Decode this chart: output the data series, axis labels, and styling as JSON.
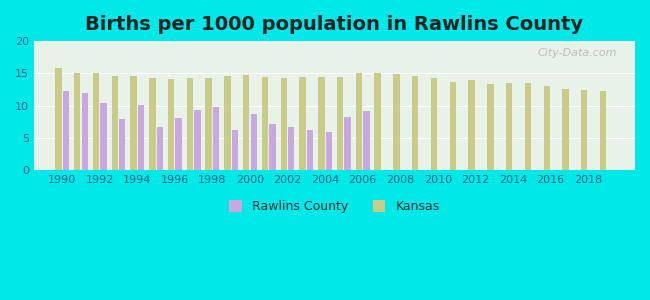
{
  "title": "Births per 1000 population in Rawlins County",
  "years": [
    1990,
    1991,
    1992,
    1993,
    1994,
    1995,
    1996,
    1997,
    1998,
    1999,
    2000,
    2001,
    2002,
    2003,
    2004,
    2005,
    2006,
    2007,
    2008,
    2009,
    2010,
    2011,
    2012,
    2013,
    2014,
    2015,
    2016,
    2017,
    2018,
    2019
  ],
  "rawlins": [
    12.3,
    12.0,
    10.4,
    8.0,
    10.1,
    6.7,
    8.1,
    9.4,
    9.8,
    6.2,
    8.7,
    7.2,
    6.7,
    6.2,
    5.9,
    8.2,
    9.2,
    null,
    null,
    null,
    null,
    null,
    null,
    null,
    null,
    null,
    null,
    null,
    null,
    null
  ],
  "kansas": [
    15.8,
    15.0,
    15.0,
    14.6,
    14.6,
    14.3,
    14.2,
    14.3,
    14.3,
    14.6,
    14.7,
    14.4,
    14.3,
    14.4,
    14.5,
    14.5,
    15.0,
    15.0,
    14.9,
    14.6,
    14.3,
    13.7,
    13.9,
    13.4,
    13.5,
    13.5,
    13.1,
    12.6,
    12.4,
    12.2
  ],
  "rawlins_color": "#c8a8e0",
  "kansas_color": "#c8cc88",
  "background_color": "#00e8e8",
  "plot_bg": "#e8f2e8",
  "ylim": [
    0,
    20
  ],
  "yticks": [
    0,
    5,
    10,
    15,
    20
  ],
  "bar_width": 0.4,
  "title_fontsize": 14,
  "watermark": "City-Data.com",
  "xticks": [
    1990,
    1992,
    1994,
    1996,
    1998,
    2000,
    2002,
    2004,
    2006,
    2008,
    2010,
    2012,
    2014,
    2016,
    2018
  ]
}
